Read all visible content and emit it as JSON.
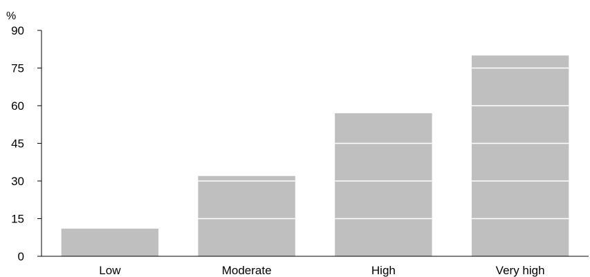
{
  "chart_data": {
    "type": "bar",
    "title": "",
    "xlabel": "",
    "ylabel": "%",
    "categories": [
      "Low",
      "Moderate",
      "High",
      "Very high"
    ],
    "values": [
      11,
      32,
      57,
      80
    ],
    "ylim": [
      0,
      90
    ],
    "yticks": [
      0,
      15,
      30,
      45,
      60,
      75,
      90
    ],
    "grid": "white lines drawn over bars at each y tick",
    "colors": {
      "bar": "#bfbfbf",
      "axis": "#000000",
      "gridline": "#ffffff"
    }
  }
}
